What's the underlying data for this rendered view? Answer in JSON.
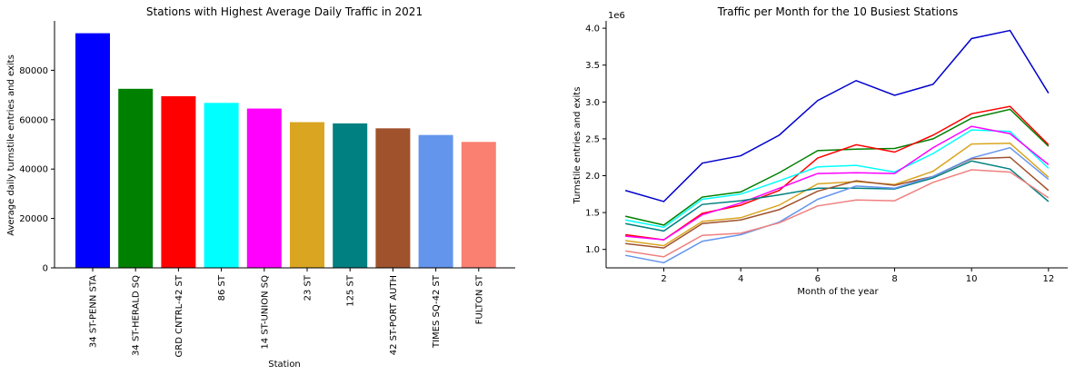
{
  "chart_data": [
    {
      "type": "bar",
      "title": "Stations with Highest Average Daily Traffic in 2021",
      "xlabel": "Station",
      "ylabel": "Average daily turnstile entries and exits",
      "ylim": [
        0,
        100000
      ],
      "yticks": [
        0,
        20000,
        40000,
        60000,
        80000
      ],
      "categories": [
        "34 ST-PENN STA",
        "34 ST-HERALD SQ",
        "GRD CNTRL-42 ST",
        "86 ST",
        "14 ST-UNION SQ",
        "23 ST",
        "125 ST",
        "42 ST-PORT AUTH",
        "TIMES SQ-42 ST",
        "FULTON ST"
      ],
      "values": [
        95000,
        72500,
        69500,
        66800,
        64500,
        59000,
        58500,
        56500,
        53800,
        51000
      ],
      "colors": [
        "#0000ff",
        "#008000",
        "#ff0000",
        "#00ffff",
        "#ff00ff",
        "#daa520",
        "#008080",
        "#a0522d",
        "#6495ed",
        "#fa8072"
      ],
      "grid": false
    },
    {
      "type": "line",
      "title": "Traffic per Month for the 10 Busiest Stations",
      "xlabel": "Month of the year",
      "ylabel": "Turnstile entries and exits",
      "y_offset_label": "1e6",
      "xlim": [
        0.5,
        12.5
      ],
      "ylim": [
        0.75,
        4.1
      ],
      "xticks": [
        2,
        4,
        6,
        8,
        10,
        12
      ],
      "yticks": [
        "1.0",
        "1.5",
        "2.0",
        "2.5",
        "3.0",
        "3.5",
        "4.0"
      ],
      "x": [
        1,
        2,
        3,
        4,
        5,
        6,
        7,
        8,
        9,
        10,
        11,
        12
      ],
      "grid": false,
      "series": [
        {
          "color": "#0000cd",
          "values": [
            1.8,
            1.65,
            2.17,
            2.27,
            2.55,
            3.02,
            3.29,
            3.09,
            3.24,
            3.86,
            3.97,
            3.12
          ]
        },
        {
          "color": "#008000",
          "values": [
            1.45,
            1.33,
            1.71,
            1.78,
            2.04,
            2.34,
            2.36,
            2.37,
            2.5,
            2.78,
            2.9,
            2.4
          ]
        },
        {
          "color": "#ff0000",
          "values": [
            1.2,
            1.13,
            1.49,
            1.6,
            1.8,
            2.24,
            2.42,
            2.32,
            2.55,
            2.84,
            2.94,
            2.42
          ]
        },
        {
          "color": "#00ffff",
          "values": [
            1.4,
            1.3,
            1.68,
            1.75,
            1.93,
            2.12,
            2.14,
            2.05,
            2.3,
            2.62,
            2.6,
            2.1
          ]
        },
        {
          "color": "#ff00ff",
          "values": [
            1.18,
            1.13,
            1.47,
            1.63,
            1.83,
            2.03,
            2.04,
            2.03,
            2.38,
            2.67,
            2.57,
            2.15
          ]
        },
        {
          "color": "#daa520",
          "values": [
            1.12,
            1.05,
            1.38,
            1.43,
            1.6,
            1.89,
            1.92,
            1.88,
            2.06,
            2.43,
            2.44,
            1.98
          ]
        },
        {
          "color": "#008080",
          "values": [
            1.35,
            1.25,
            1.61,
            1.66,
            1.74,
            1.83,
            1.83,
            1.82,
            1.97,
            2.2,
            2.09,
            1.65
          ]
        },
        {
          "color": "#a0522d",
          "values": [
            1.08,
            1.02,
            1.35,
            1.4,
            1.54,
            1.79,
            1.93,
            1.87,
            1.99,
            2.23,
            2.25,
            1.8
          ]
        },
        {
          "color": "#6495ed",
          "values": [
            0.92,
            0.82,
            1.11,
            1.2,
            1.37,
            1.68,
            1.86,
            1.83,
            1.99,
            2.24,
            2.38,
            1.95
          ]
        },
        {
          "color": "#f08080",
          "values": [
            0.98,
            0.9,
            1.19,
            1.22,
            1.36,
            1.59,
            1.67,
            1.66,
            1.91,
            2.08,
            2.05,
            1.7
          ]
        }
      ]
    }
  ]
}
